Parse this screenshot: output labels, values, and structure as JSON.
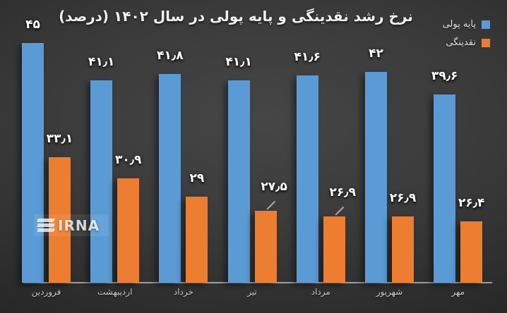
{
  "title": "نرخ رشد نقدینگی و پایه پولی در سال ۱۴۰۲ (درصد)",
  "legend": [
    {
      "label": "پایه پولی",
      "color": "#5b9bd5"
    },
    {
      "label": "نقدینگی",
      "color": "#ed7d31"
    }
  ],
  "watermark": {
    "text": "IRNA"
  },
  "chart_data": {
    "type": "bar",
    "title": "نرخ رشد نقدینگی و پایه پولی در سال ۱۴۰۲ (درصد)",
    "xlabel": "",
    "ylabel": "",
    "categories": [
      "فروردین",
      "اردیبهشت",
      "خرداد",
      "تیر",
      "مرداد",
      "شهریور",
      "مهر"
    ],
    "series": [
      {
        "name": "پایه پولی",
        "color": "#5b9bd5",
        "values": [
          45,
          41.1,
          41.8,
          41.1,
          41.6,
          42,
          39.6
        ],
        "labels": [
          "۴۵",
          "۴۱٫۱",
          "۴۱٫۸",
          "۴۱٫۱",
          "۴۱٫۶",
          "۴۲",
          "۳۹٫۶"
        ],
        "leader_line_indices": []
      },
      {
        "name": "نقدینگی",
        "color": "#ed7d31",
        "values": [
          33.1,
          30.9,
          29,
          27.5,
          26.9,
          26.9,
          26.4
        ],
        "labels": [
          "۳۳٫۱",
          "۳۰٫۹",
          "۲۹",
          "۲۷٫۵",
          "۲۶٫۹",
          "۲۶٫۹",
          "۲۶٫۴"
        ],
        "leader_line_indices": [
          3,
          4
        ]
      }
    ],
    "ylim": [
      20,
      46.5
    ],
    "grid": false,
    "legend_position": "top-right"
  }
}
